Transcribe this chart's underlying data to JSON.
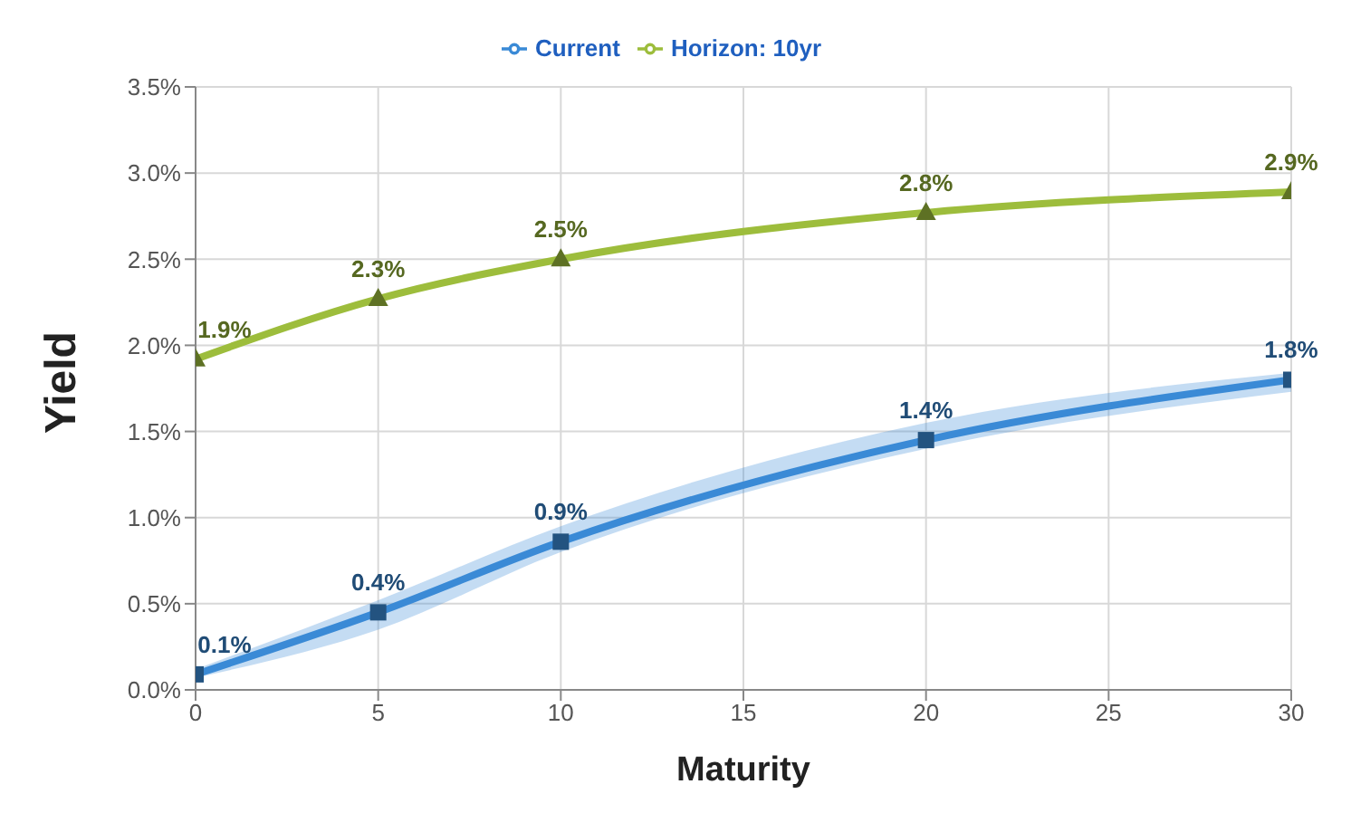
{
  "chart_data": {
    "type": "line",
    "xlabel": "Maturity",
    "ylabel": "Yield",
    "x": [
      0,
      5,
      10,
      20,
      30
    ],
    "series": [
      {
        "name": "Current",
        "color": "#3a8ad6",
        "marker": "square",
        "values": [
          0.09,
          0.45,
          0.86,
          1.45,
          1.8
        ],
        "lower": [
          0.07,
          0.35,
          0.8,
          1.4,
          1.73
        ],
        "upper": [
          0.12,
          0.52,
          0.95,
          1.55,
          1.84
        ],
        "value_labels": [
          "0.1%",
          "0.4%",
          "0.9%",
          "1.4%",
          "1.8%"
        ]
      },
      {
        "name": "Horizon:  10yr",
        "color": "#9dbd3c",
        "marker": "triangle",
        "values": [
          1.92,
          2.27,
          2.5,
          2.77,
          2.89
        ],
        "value_labels": [
          "1.9%",
          "2.3%",
          "2.5%",
          "2.8%",
          "2.9%"
        ]
      }
    ],
    "xlim": [
      0,
      30
    ],
    "xticks": [
      0,
      5,
      10,
      15,
      20,
      25,
      30
    ],
    "ylim": [
      0,
      3.5
    ],
    "yticks": [
      {
        "value": 0,
        "label": "0.0%"
      },
      {
        "value": 0.5,
        "label": "0.5%"
      },
      {
        "value": 1,
        "label": "1.0%"
      },
      {
        "value": 1.5,
        "label": "1.5%"
      },
      {
        "value": 2,
        "label": "2.0%"
      },
      {
        "value": 2.5,
        "label": "2.5%"
      },
      {
        "value": 3,
        "label": "3.0%"
      },
      {
        "value": 3.5,
        "label": "3.5%"
      }
    ],
    "grid": true,
    "legend": "top"
  }
}
